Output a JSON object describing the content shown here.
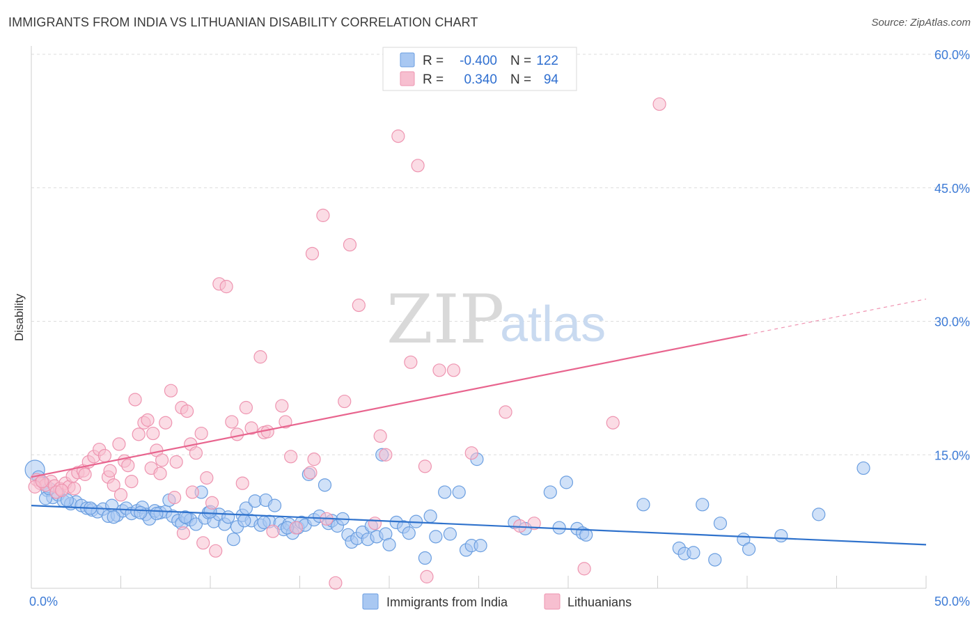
{
  "header": {
    "title": "IMMIGRANTS FROM INDIA VS LITHUANIAN DISABILITY CORRELATION CHART",
    "source": "Source: ZipAtlas.com"
  },
  "watermark": {
    "zip": "ZIP",
    "atlas": "atlas"
  },
  "legend": {
    "r_label": "R =",
    "n_label": "N =",
    "items": [
      {
        "r": "-0.400",
        "n": "122",
        "color": "#5b9be6"
      },
      {
        "r": "0.340",
        "n": "94",
        "color": "#f08aaa"
      }
    ]
  },
  "bottom_legend": [
    "Immigrants from India",
    "Lithuanians"
  ],
  "colors": {
    "blue_fill": "#a9c8f2",
    "blue_stroke": "#6a9ee0",
    "blue_line": "#2f72cc",
    "pink_fill": "#f7bfd0",
    "pink_stroke": "#ee94b0",
    "pink_line": "#e8648e",
    "tick_label": "#3d7bd6",
    "grid": "#dcdcdc"
  },
  "chart_data": {
    "type": "scatter",
    "title": "IMMIGRANTS FROM INDIA VS LITHUANIAN DISABILITY CORRELATION CHART",
    "xlabel": "",
    "ylabel": "Disability",
    "xlim": [
      0,
      50
    ],
    "ylim": [
      0,
      60
    ],
    "x_tick_labels": [
      "0.0%",
      "50.0%"
    ],
    "y_ticks": [
      15,
      30,
      45,
      60
    ],
    "y_tick_labels": [
      "15.0%",
      "30.0%",
      "45.0%",
      "60.0%"
    ],
    "grid": true,
    "legend_position": "top-center",
    "series": [
      {
        "name": "Immigrants from India",
        "r": -0.4,
        "n": 122,
        "trend": {
          "x": [
            0,
            50
          ],
          "y": [
            9.3,
            4.9
          ]
        },
        "points": [
          [
            0.2,
            13.3
          ],
          [
            0.4,
            12.5
          ],
          [
            0.7,
            11.8
          ],
          [
            0.9,
            11.0
          ],
          [
            1.2,
            10.2
          ],
          [
            1.5,
            10.5
          ],
          [
            1.8,
            9.8
          ],
          [
            2.2,
            9.5
          ],
          [
            2.5,
            9.7
          ],
          [
            2.8,
            9.3
          ],
          [
            3.1,
            9.0
          ],
          [
            3.4,
            8.8
          ],
          [
            3.7,
            8.6
          ],
          [
            4.0,
            8.9
          ],
          [
            4.3,
            8.1
          ],
          [
            4.5,
            9.3
          ],
          [
            4.8,
            8.2
          ],
          [
            5.1,
            8.7
          ],
          [
            5.3,
            9.0
          ],
          [
            5.6,
            8.4
          ],
          [
            5.9,
            8.7
          ],
          [
            6.2,
            9.1
          ],
          [
            6.4,
            8.3
          ],
          [
            6.6,
            7.8
          ],
          [
            6.9,
            8.7
          ],
          [
            7.2,
            8.5
          ],
          [
            7.5,
            8.6
          ],
          [
            7.7,
            9.9
          ],
          [
            7.9,
            8.1
          ],
          [
            8.2,
            7.6
          ],
          [
            8.4,
            7.3
          ],
          [
            8.7,
            7.9
          ],
          [
            8.9,
            7.7
          ],
          [
            9.2,
            7.2
          ],
          [
            9.5,
            10.8
          ],
          [
            9.7,
            7.9
          ],
          [
            9.9,
            8.5
          ],
          [
            10.2,
            7.5
          ],
          [
            10.5,
            8.3
          ],
          [
            10.8,
            7.2
          ],
          [
            11.0,
            8.0
          ],
          [
            11.3,
            5.5
          ],
          [
            11.5,
            6.9
          ],
          [
            11.8,
            8.2
          ],
          [
            12.0,
            9.0
          ],
          [
            12.3,
            7.6
          ],
          [
            12.5,
            9.8
          ],
          [
            12.8,
            7.1
          ],
          [
            13.1,
            9.9
          ],
          [
            13.3,
            7.5
          ],
          [
            13.6,
            9.3
          ],
          [
            13.9,
            7.3
          ],
          [
            14.1,
            6.6
          ],
          [
            14.4,
            7.2
          ],
          [
            14.6,
            6.2
          ],
          [
            14.9,
            6.8
          ],
          [
            15.1,
            7.4
          ],
          [
            15.3,
            7.1
          ],
          [
            15.5,
            12.8
          ],
          [
            15.8,
            7.7
          ],
          [
            16.1,
            8.1
          ],
          [
            16.4,
            11.6
          ],
          [
            16.6,
            7.3
          ],
          [
            16.8,
            7.6
          ],
          [
            17.1,
            7.0
          ],
          [
            17.4,
            7.8
          ],
          [
            17.7,
            6.0
          ],
          [
            17.9,
            5.2
          ],
          [
            18.2,
            5.6
          ],
          [
            18.5,
            6.3
          ],
          [
            18.8,
            5.5
          ],
          [
            19.0,
            7.0
          ],
          [
            19.3,
            5.8
          ],
          [
            19.6,
            15.0
          ],
          [
            19.8,
            6.1
          ],
          [
            20.0,
            4.9
          ],
          [
            20.4,
            7.4
          ],
          [
            20.8,
            6.9
          ],
          [
            21.1,
            6.2
          ],
          [
            21.5,
            7.5
          ],
          [
            22.0,
            3.4
          ],
          [
            22.3,
            8.1
          ],
          [
            22.6,
            5.8
          ],
          [
            23.1,
            10.8
          ],
          [
            23.4,
            6.1
          ],
          [
            23.9,
            10.8
          ],
          [
            24.3,
            4.3
          ],
          [
            24.6,
            4.8
          ],
          [
            24.9,
            14.5
          ],
          [
            25.1,
            4.8
          ],
          [
            27.0,
            7.4
          ],
          [
            27.6,
            6.7
          ],
          [
            29.0,
            10.8
          ],
          [
            29.5,
            6.8
          ],
          [
            29.9,
            11.9
          ],
          [
            30.5,
            6.7
          ],
          [
            30.8,
            6.2
          ],
          [
            31.0,
            6.0
          ],
          [
            34.2,
            9.4
          ],
          [
            36.2,
            4.5
          ],
          [
            36.5,
            3.9
          ],
          [
            37.0,
            4.0
          ],
          [
            37.5,
            9.4
          ],
          [
            38.2,
            3.2
          ],
          [
            38.5,
            7.3
          ],
          [
            39.8,
            5.5
          ],
          [
            40.1,
            4.4
          ],
          [
            41.9,
            5.9
          ],
          [
            44.0,
            8.3
          ],
          [
            46.5,
            13.5
          ],
          [
            0.8,
            10.1
          ],
          [
            1.0,
            11.2
          ],
          [
            2.0,
            9.9
          ],
          [
            3.3,
            9.0
          ],
          [
            4.6,
            8.0
          ],
          [
            6.1,
            8.5
          ],
          [
            7.0,
            8.4
          ],
          [
            8.6,
            8.0
          ],
          [
            10.0,
            8.6
          ],
          [
            11.9,
            7.6
          ],
          [
            13.0,
            7.4
          ],
          [
            14.3,
            6.8
          ]
        ]
      },
      {
        "name": "Lithuanians",
        "r": 0.34,
        "n": 94,
        "trend": {
          "x": [
            0,
            40
          ],
          "y": [
            12.5,
            28.5
          ]
        },
        "trend_dashed": {
          "x": [
            40,
            50
          ],
          "y": [
            28.5,
            32.5
          ]
        },
        "points": [
          [
            0.3,
            12.2
          ],
          [
            0.5,
            11.8
          ],
          [
            0.8,
            11.6
          ],
          [
            1.1,
            12.0
          ],
          [
            1.3,
            11.5
          ],
          [
            1.6,
            11.2
          ],
          [
            1.9,
            11.8
          ],
          [
            2.1,
            11.4
          ],
          [
            2.3,
            12.6
          ],
          [
            2.6,
            13.0
          ],
          [
            2.9,
            13.2
          ],
          [
            3.2,
            14.2
          ],
          [
            3.5,
            14.8
          ],
          [
            3.8,
            15.6
          ],
          [
            4.1,
            14.9
          ],
          [
            4.3,
            12.5
          ],
          [
            4.6,
            11.6
          ],
          [
            4.9,
            16.2
          ],
          [
            5.2,
            14.3
          ],
          [
            5.4,
            13.8
          ],
          [
            5.8,
            21.2
          ],
          [
            6.0,
            17.3
          ],
          [
            6.3,
            18.6
          ],
          [
            6.5,
            18.9
          ],
          [
            6.8,
            17.4
          ],
          [
            7.0,
            15.5
          ],
          [
            7.3,
            14.4
          ],
          [
            7.5,
            18.6
          ],
          [
            7.8,
            22.2
          ],
          [
            8.1,
            14.2
          ],
          [
            8.4,
            20.3
          ],
          [
            8.7,
            19.9
          ],
          [
            8.9,
            16.2
          ],
          [
            9.2,
            15.2
          ],
          [
            9.5,
            17.4
          ],
          [
            9.8,
            12.4
          ],
          [
            10.1,
            9.6
          ],
          [
            10.5,
            34.2
          ],
          [
            10.9,
            33.9
          ],
          [
            11.2,
            18.7
          ],
          [
            11.5,
            17.3
          ],
          [
            12.0,
            20.3
          ],
          [
            12.3,
            18.0
          ],
          [
            12.8,
            26.0
          ],
          [
            13.0,
            17.5
          ],
          [
            13.2,
            17.6
          ],
          [
            14.0,
            20.5
          ],
          [
            14.2,
            18.7
          ],
          [
            14.5,
            14.8
          ],
          [
            15.8,
            14.5
          ],
          [
            15.7,
            37.6
          ],
          [
            16.3,
            41.9
          ],
          [
            17.5,
            21.0
          ],
          [
            17.8,
            38.6
          ],
          [
            18.3,
            31.8
          ],
          [
            19.2,
            7.3
          ],
          [
            19.5,
            17.1
          ],
          [
            19.8,
            15.0
          ],
          [
            20.5,
            50.8
          ],
          [
            21.2,
            25.4
          ],
          [
            21.6,
            47.5
          ],
          [
            22.0,
            13.7
          ],
          [
            22.8,
            24.5
          ],
          [
            23.6,
            24.5
          ],
          [
            24.6,
            15.2
          ],
          [
            26.5,
            19.8
          ],
          [
            28.1,
            7.3
          ],
          [
            30.9,
            2.2
          ],
          [
            32.5,
            18.6
          ],
          [
            35.1,
            54.4
          ],
          [
            0.2,
            11.4
          ],
          [
            0.6,
            12.0
          ],
          [
            1.4,
            10.8
          ],
          [
            1.7,
            11.0
          ],
          [
            2.4,
            11.2
          ],
          [
            3.0,
            12.8
          ],
          [
            4.4,
            13.2
          ],
          [
            5.0,
            10.5
          ],
          [
            5.6,
            12.0
          ],
          [
            6.7,
            13.5
          ],
          [
            7.2,
            12.9
          ],
          [
            8.0,
            10.2
          ],
          [
            8.5,
            6.2
          ],
          [
            9.0,
            10.8
          ],
          [
            9.6,
            5.1
          ],
          [
            10.3,
            4.2
          ],
          [
            11.8,
            11.8
          ],
          [
            13.5,
            6.4
          ],
          [
            14.8,
            6.8
          ],
          [
            16.5,
            7.8
          ],
          [
            17.0,
            0.6
          ],
          [
            22.1,
            1.3
          ],
          [
            27.3,
            7.0
          ],
          [
            15.6,
            13.0
          ]
        ]
      }
    ]
  }
}
